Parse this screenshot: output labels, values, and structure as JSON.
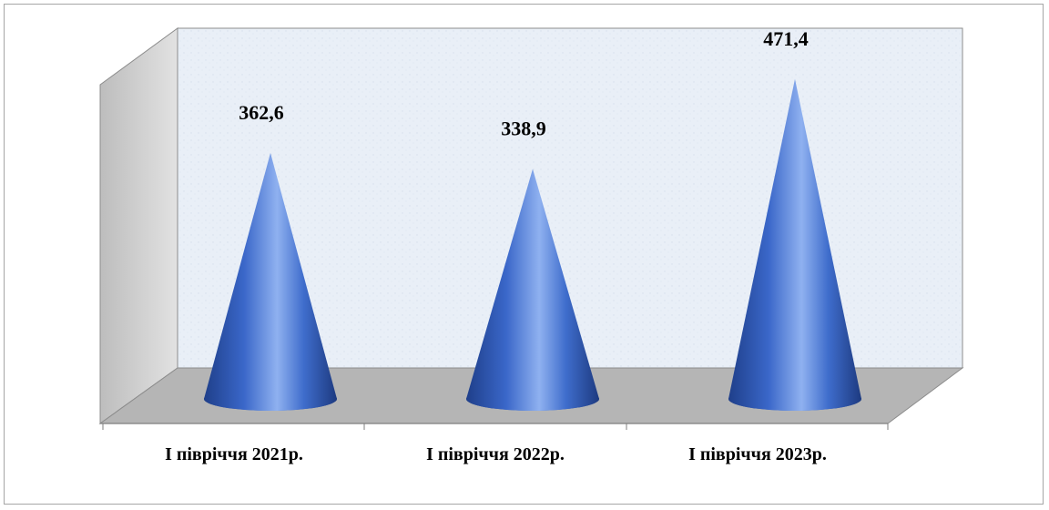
{
  "chart_data": {
    "type": "bar",
    "bar_shape": "cone",
    "categories": [
      "I півріччя 2021р.",
      "I півріччя 2022р.",
      "I півріччя 2023р."
    ],
    "values": [
      362.6,
      338.9,
      471.4
    ],
    "data_labels": [
      "362,6",
      "338,9",
      "471,4"
    ],
    "ylim": [
      0,
      500
    ],
    "grid": false,
    "legend": "none",
    "colors": {
      "cone_dark": "#1f3f8a",
      "cone_mid": "#3a67c9",
      "cone_light": "#8fb1f0",
      "back_wall": "#e8eef6",
      "side_wall": "#cfcfcf",
      "floor": "#b5b5b5"
    }
  }
}
